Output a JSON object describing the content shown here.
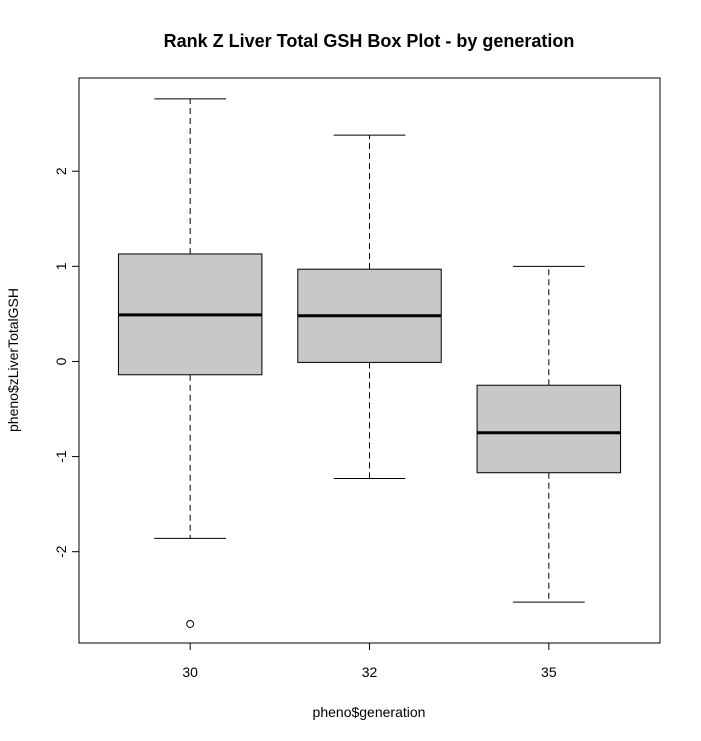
{
  "chart_data": {
    "type": "box",
    "title": "Rank Z Liver Total GSH Box Plot - by generation",
    "xlabel": "pheno$generation",
    "ylabel": "pheno$zLiverTotalGSH",
    "ylim": [
      -2.96,
      2.98
    ],
    "yticks": [
      "-2",
      "-1",
      "0",
      "1",
      "2"
    ],
    "y_tick_values": [
      -2,
      -1,
      0,
      1,
      2
    ],
    "grid": false,
    "box_fill": "#c8c8c8",
    "groups": [
      {
        "label": "30",
        "whisker_low": -1.86,
        "q1": -0.14,
        "median": 0.49,
        "q3": 1.13,
        "whisker_high": 2.76,
        "outliers": [
          -2.76
        ]
      },
      {
        "label": "32",
        "whisker_low": -1.23,
        "q1": -0.01,
        "median": 0.48,
        "q3": 0.97,
        "whisker_high": 2.38,
        "outliers": []
      },
      {
        "label": "35",
        "whisker_low": -2.53,
        "q1": -1.17,
        "median": -0.75,
        "q3": -0.25,
        "whisker_high": 1.0,
        "outliers": []
      }
    ]
  }
}
